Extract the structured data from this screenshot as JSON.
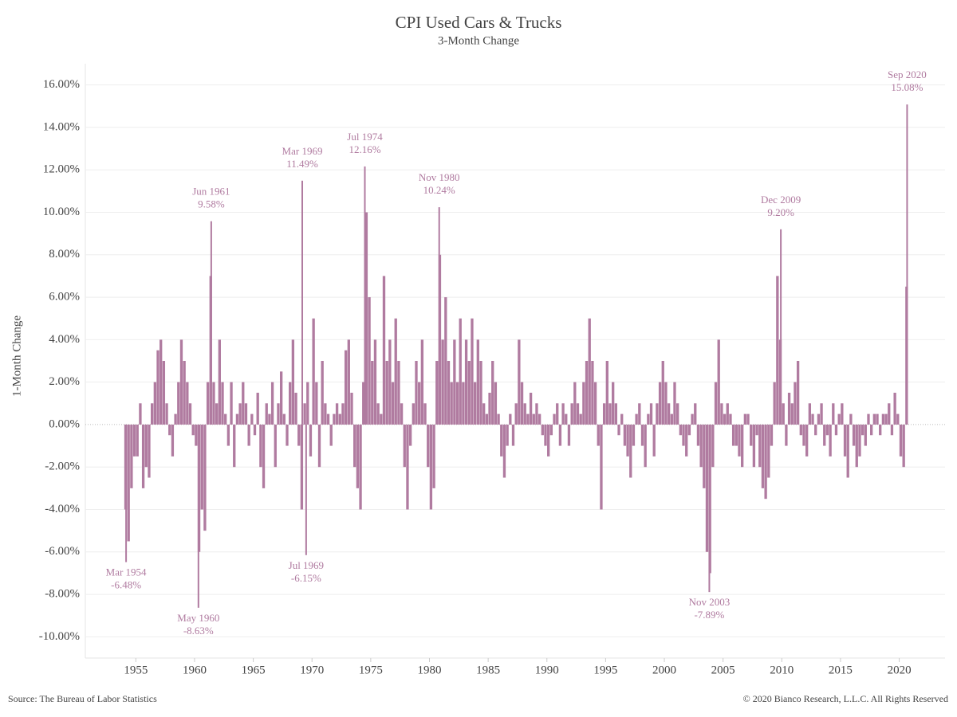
{
  "chart_data": {
    "type": "bar",
    "title": "CPI Used Cars & Trucks",
    "subtitle": "3-Month Change",
    "y_label": "1-Month Change",
    "source": "Source: The Bureau of Labor Statistics",
    "copyright": "© 2020 Bianco Research, L.L.C. All Rights Reserved",
    "color": "#b07ba0",
    "grid": true,
    "xlim": [
      1950.7,
      2023.9
    ],
    "ylim": [
      -11,
      17
    ],
    "xticks": [
      1955,
      1960,
      1965,
      1970,
      1975,
      1980,
      1985,
      1990,
      1995,
      2000,
      2005,
      2010,
      2015,
      2020
    ],
    "yticks": [
      {
        "value": 16,
        "label": "16.00%"
      },
      {
        "value": 14,
        "label": "14.00%"
      },
      {
        "value": 12,
        "label": "12.00%"
      },
      {
        "value": 10,
        "label": "10.00%"
      },
      {
        "value": 8,
        "label": "8.00%"
      },
      {
        "value": 6,
        "label": "6.00%"
      },
      {
        "value": 4,
        "label": "4.00%"
      },
      {
        "value": 2,
        "label": "2.00%"
      },
      {
        "value": 0,
        "label": "0.00%"
      },
      {
        "value": -2,
        "label": "-2.00%"
      },
      {
        "value": -4,
        "label": "-4.00%"
      },
      {
        "value": -6,
        "label": "-6.00%"
      },
      {
        "value": -8,
        "label": "-8.00%"
      },
      {
        "value": -10,
        "label": "-10.00%"
      }
    ],
    "x": [
      1954.13,
      1954.38,
      1954.63,
      1954.88,
      1955.13,
      1955.38,
      1955.63,
      1955.88,
      1956.13,
      1956.38,
      1956.63,
      1956.88,
      1957.13,
      1957.38,
      1957.63,
      1957.88,
      1958.13,
      1958.38,
      1958.63,
      1958.88,
      1959.13,
      1959.38,
      1959.63,
      1959.88,
      1960.13,
      1960.38,
      1960.63,
      1960.88,
      1961.13,
      1961.38,
      1961.63,
      1961.88,
      1962.13,
      1962.38,
      1962.63,
      1962.88,
      1963.13,
      1963.38,
      1963.63,
      1963.88,
      1964.13,
      1964.38,
      1964.63,
      1964.88,
      1965.13,
      1965.38,
      1965.63,
      1965.88,
      1966.13,
      1966.38,
      1966.63,
      1966.88,
      1967.13,
      1967.38,
      1967.63,
      1967.88,
      1968.13,
      1968.38,
      1968.63,
      1968.88,
      1969.13,
      1969.38,
      1969.63,
      1969.88,
      1970.13,
      1970.38,
      1970.63,
      1970.88,
      1971.13,
      1971.38,
      1971.63,
      1971.88,
      1972.13,
      1972.38,
      1972.63,
      1972.88,
      1973.13,
      1973.38,
      1973.63,
      1973.88,
      1974.13,
      1974.38,
      1974.63,
      1974.88,
      1975.13,
      1975.38,
      1975.63,
      1975.88,
      1976.13,
      1976.38,
      1976.63,
      1976.88,
      1977.13,
      1977.38,
      1977.63,
      1977.88,
      1978.13,
      1978.38,
      1978.63,
      1978.88,
      1979.13,
      1979.38,
      1979.63,
      1979.88,
      1980.13,
      1980.38,
      1980.63,
      1980.88,
      1981.13,
      1981.38,
      1981.63,
      1981.88,
      1982.13,
      1982.38,
      1982.63,
      1982.88,
      1983.13,
      1983.38,
      1983.63,
      1983.88,
      1984.13,
      1984.38,
      1984.63,
      1984.88,
      1985.13,
      1985.38,
      1985.63,
      1985.88,
      1986.13,
      1986.38,
      1986.63,
      1986.88,
      1987.13,
      1987.38,
      1987.63,
      1987.88,
      1988.13,
      1988.38,
      1988.63,
      1988.88,
      1989.13,
      1989.38,
      1989.63,
      1989.88,
      1990.13,
      1990.38,
      1990.63,
      1990.88,
      1991.13,
      1991.38,
      1991.63,
      1991.88,
      1992.13,
      1992.38,
      1992.63,
      1992.88,
      1993.13,
      1993.38,
      1993.63,
      1993.88,
      1994.13,
      1994.38,
      1994.63,
      1994.88,
      1995.13,
      1995.38,
      1995.63,
      1995.88,
      1996.13,
      1996.38,
      1996.63,
      1996.88,
      1997.13,
      1997.38,
      1997.63,
      1997.88,
      1998.13,
      1998.38,
      1998.63,
      1998.88,
      1999.13,
      1999.38,
      1999.63,
      1999.88,
      2000.13,
      2000.38,
      2000.63,
      2000.88,
      2001.13,
      2001.38,
      2001.63,
      2001.88,
      2002.13,
      2002.38,
      2002.63,
      2002.88,
      2003.13,
      2003.38,
      2003.63,
      2003.88,
      2004.13,
      2004.38,
      2004.63,
      2004.88,
      2005.13,
      2005.38,
      2005.63,
      2005.88,
      2006.13,
      2006.38,
      2006.63,
      2006.88,
      2007.13,
      2007.38,
      2007.63,
      2007.88,
      2008.13,
      2008.38,
      2008.63,
      2008.88,
      2009.13,
      2009.38,
      2009.63,
      2009.88,
      2010.13,
      2010.38,
      2010.63,
      2010.88,
      2011.13,
      2011.38,
      2011.63,
      2011.88,
      2012.13,
      2012.38,
      2012.63,
      2012.88,
      2013.13,
      2013.38,
      2013.63,
      2013.88,
      2014.13,
      2014.38,
      2014.63,
      2014.88,
      2015.13,
      2015.38,
      2015.63,
      2015.88,
      2016.13,
      2016.38,
      2016.63,
      2016.88,
      2017.13,
      2017.38,
      2017.63,
      2017.88,
      2018.13,
      2018.38,
      2018.63,
      2018.88,
      2019.13,
      2019.38,
      2019.63,
      2019.88,
      2020.13,
      2020.38,
      2020.63
    ],
    "values": [
      -4,
      -5.5,
      -3,
      -1.5,
      -1.5,
      1,
      -3,
      -2,
      -2.5,
      1,
      2,
      3.5,
      4,
      3,
      1,
      -0.5,
      -1.5,
      0.5,
      2,
      4,
      3,
      2,
      1,
      -0.5,
      -1,
      -6,
      -4,
      -5,
      2,
      7,
      2,
      1,
      4,
      2,
      0.5,
      -1,
      2,
      -2,
      0.5,
      1,
      2,
      1,
      -1,
      0.5,
      -0.5,
      1.5,
      -2,
      -3,
      1,
      0.5,
      2,
      -2,
      1,
      2.5,
      0.5,
      -1,
      2,
      4,
      1.5,
      -1,
      -4,
      1,
      2,
      -1.5,
      5,
      2,
      -2,
      3,
      1,
      0.5,
      -1,
      0.5,
      1,
      0.5,
      1,
      3.5,
      4,
      1.5,
      -2,
      -3,
      -4,
      2,
      10,
      6,
      3,
      4,
      1,
      0.5,
      7,
      3,
      4,
      2,
      5,
      3,
      1,
      -2,
      -4,
      -1,
      1,
      3,
      2,
      4,
      1,
      -2,
      -4,
      -3,
      3,
      8,
      4,
      6,
      3,
      2,
      4,
      2,
      5,
      2,
      4,
      3,
      5,
      2,
      4,
      3,
      1,
      0.5,
      1.5,
      3,
      2,
      0.5,
      -1.5,
      -2.5,
      -1,
      0.5,
      -1,
      1,
      4,
      2,
      1,
      0.5,
      1.5,
      0.5,
      1,
      0.5,
      -0.5,
      -1,
      -1.5,
      -0.5,
      0.5,
      1,
      -1,
      1,
      0.5,
      -1,
      1,
      2,
      1,
      0.5,
      2,
      3,
      5,
      3,
      2,
      -1,
      -4,
      1,
      3,
      1,
      2,
      1,
      -0.5,
      0.5,
      -1,
      -1.5,
      -2.5,
      -1,
      0.5,
      1,
      -1,
      -2,
      0.5,
      1,
      -1.5,
      1,
      2,
      3,
      2,
      1,
      0.5,
      2,
      1,
      -0.5,
      -1,
      -1.5,
      -0.5,
      0.5,
      1,
      -1,
      -2,
      -3,
      -6,
      -7,
      -2,
      2,
      4,
      1,
      0.5,
      1,
      0.5,
      -1,
      -1,
      -1.5,
      -2,
      0.5,
      0.5,
      -1,
      -2,
      -0.5,
      -2,
      -3,
      -3.5,
      -2.5,
      -1,
      2,
      7,
      4,
      1,
      -1,
      1.5,
      1,
      2,
      3,
      -0.5,
      -1,
      -1.5,
      1,
      0.5,
      -0.5,
      0.5,
      1,
      -1,
      -0.5,
      -1.5,
      1,
      -0.5,
      0.5,
      1,
      -1.5,
      -2.5,
      0.5,
      -1,
      -2,
      -1.5,
      -0.5,
      -1,
      0.5,
      -0.5,
      0.5,
      0.5,
      -0.5,
      0.5,
      0.5,
      1,
      -0.5,
      1.5,
      0.5,
      -1.5,
      -2,
      6.5
    ],
    "annotations": [
      {
        "label": "Mar 1954",
        "x": 1954.17,
        "value": -6.48,
        "value_label": "-6.48%"
      },
      {
        "label": "May 1960",
        "x": 1960.33,
        "value": -8.63,
        "value_label": "-8.63%"
      },
      {
        "label": "Jun 1961",
        "x": 1961.42,
        "value": 9.58,
        "value_label": "9.58%"
      },
      {
        "label": "Mar 1969",
        "x": 1969.17,
        "value": 11.49,
        "value_label": "11.49%"
      },
      {
        "label": "Jul 1969",
        "x": 1969.5,
        "value": -6.15,
        "value_label": "-6.15%"
      },
      {
        "label": "Jul 1974",
        "x": 1974.5,
        "value": 12.16,
        "value_label": "12.16%"
      },
      {
        "label": "Nov 1980",
        "x": 1980.83,
        "value": 10.24,
        "value_label": "10.24%"
      },
      {
        "label": "Nov 2003",
        "x": 2003.83,
        "value": -7.89,
        "value_label": "-7.89%"
      },
      {
        "label": "Dec 2009",
        "x": 2009.92,
        "value": 9.2,
        "value_label": "9.20%"
      },
      {
        "label": "Sep 2020",
        "x": 2020.67,
        "value": 15.08,
        "value_label": "15.08%"
      }
    ]
  }
}
